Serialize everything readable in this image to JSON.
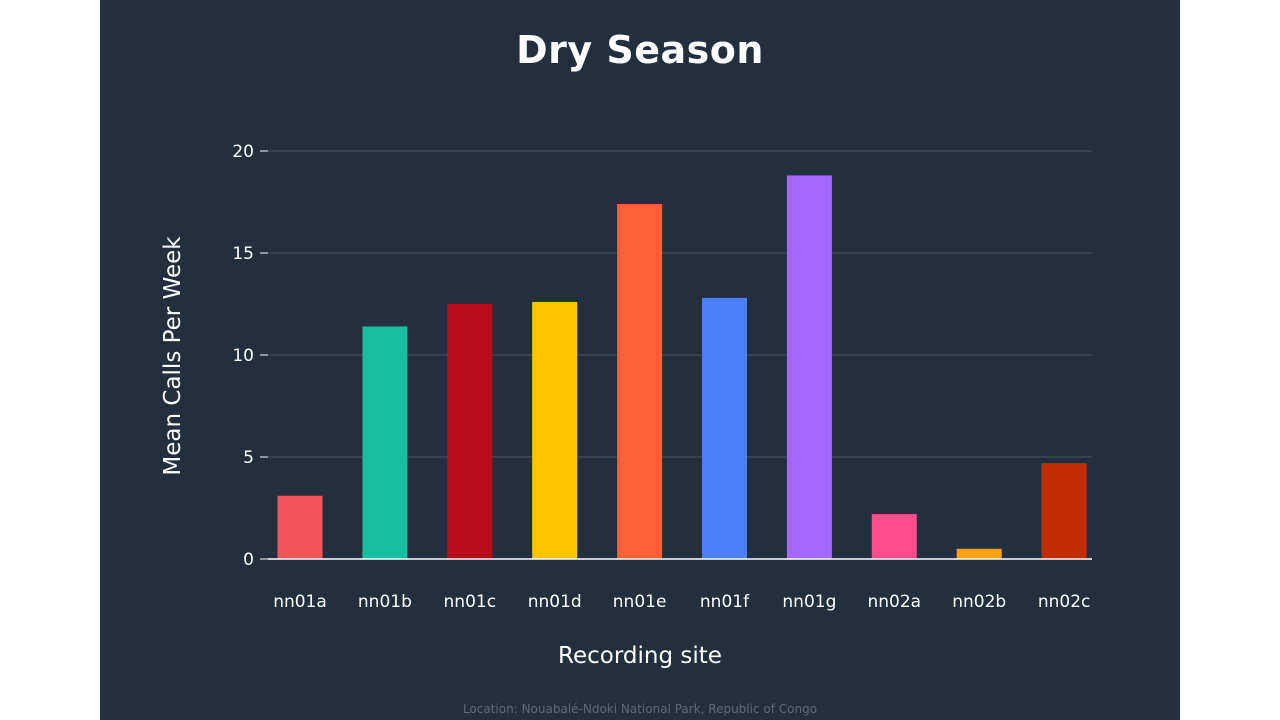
{
  "chart_data": {
    "type": "bar",
    "title": "Dry Season",
    "xlabel": "Recording site",
    "ylabel": "Mean Calls Per Week",
    "categories": [
      "nn01a",
      "nn01b",
      "nn01c",
      "nn01d",
      "nn01e",
      "nn01f",
      "nn01g",
      "nn02a",
      "nn02b",
      "nn02c"
    ],
    "values": [
      3.1,
      11.4,
      12.5,
      12.6,
      17.4,
      12.8,
      18.8,
      2.2,
      0.5,
      4.7
    ],
    "colors": [
      "#f25558",
      "#17bfa0",
      "#b90d1c",
      "#ffc400",
      "#ff6038",
      "#4d80ff",
      "#a366ff",
      "#ff4d8c",
      "#ffa21a",
      "#c22d06"
    ],
    "ylim": [
      0,
      20
    ],
    "yticks": [
      0,
      5,
      10,
      15,
      20
    ],
    "grid": true,
    "legend": "none"
  },
  "footer": "Location: Nouabalé-Ndoki National Park, Republic of Congo"
}
